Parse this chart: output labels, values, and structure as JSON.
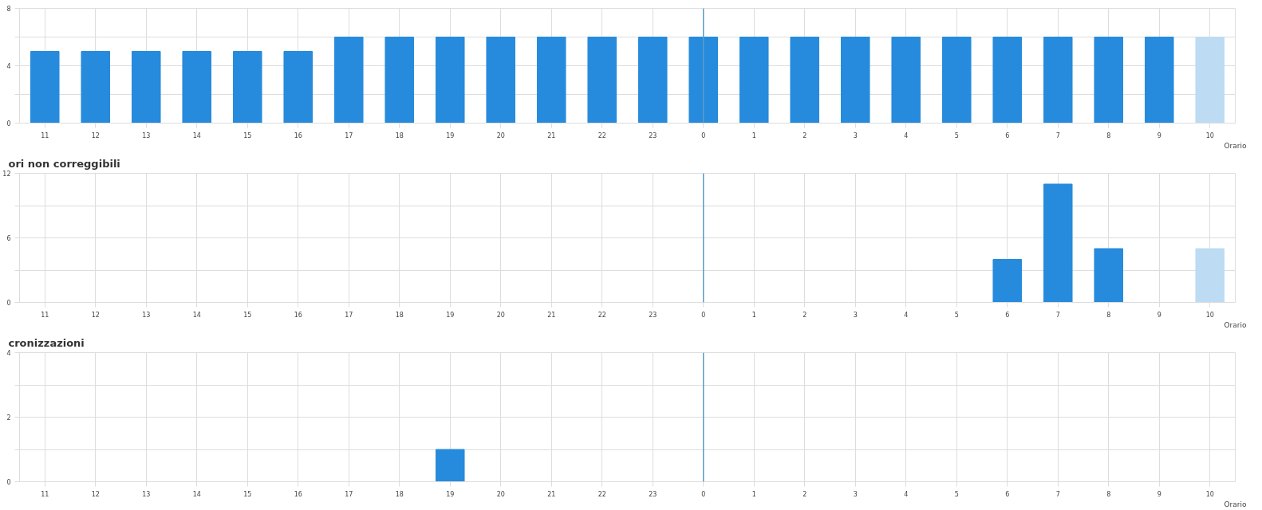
{
  "chart_data": [
    {
      "type": "bar",
      "categories": [
        "11",
        "12",
        "13",
        "14",
        "15",
        "16",
        "17",
        "18",
        "19",
        "20",
        "21",
        "22",
        "23",
        "0",
        "1",
        "2",
        "3",
        "4",
        "5",
        "6",
        "7",
        "8",
        "9",
        "10"
      ],
      "values": [
        5,
        5,
        5,
        5,
        5,
        5,
        6,
        6,
        6,
        6,
        6,
        6,
        6,
        6,
        6,
        6,
        6,
        6,
        6,
        6,
        6,
        6,
        6,
        6
      ],
      "colors": [
        "#268bdc",
        "#268bdc",
        "#268bdc",
        "#268bdc",
        "#268bdc",
        "#268bdc",
        "#268bdc",
        "#268bdc",
        "#268bdc",
        "#268bdc",
        "#268bdc",
        "#268bdc",
        "#268bdc",
        "#268bdc",
        "#268bdc",
        "#268bdc",
        "#268bdc",
        "#268bdc",
        "#268bdc",
        "#268bdc",
        "#268bdc",
        "#268bdc",
        "#268bdc",
        "#bddcf3"
      ],
      "xlabel": "Orario",
      "ylim": [
        0,
        8
      ],
      "yticks": [
        0,
        {
          "value": 2,
          "label": null
        },
        4,
        {
          "value": 6,
          "label": null
        },
        8
      ],
      "grid": true,
      "ref_lines": [
        {
          "axis": "x",
          "value": "0",
          "color": "#5b9bc8"
        }
      ]
    },
    {
      "type": "bar",
      "title": "ori non correggibili",
      "categories": [
        "11",
        "12",
        "13",
        "14",
        "15",
        "16",
        "17",
        "18",
        "19",
        "20",
        "21",
        "22",
        "23",
        "0",
        "1",
        "2",
        "3",
        "4",
        "5",
        "6",
        "7",
        "8",
        "9",
        "10"
      ],
      "values": [
        0,
        0,
        0,
        0,
        0,
        0,
        0,
        0,
        0,
        0,
        0,
        0,
        0,
        0,
        0,
        0,
        0,
        0,
        0,
        4,
        11,
        5,
        0,
        5
      ],
      "colors": [
        "#268bdc",
        "#268bdc",
        "#268bdc",
        "#268bdc",
        "#268bdc",
        "#268bdc",
        "#268bdc",
        "#268bdc",
        "#268bdc",
        "#268bdc",
        "#268bdc",
        "#268bdc",
        "#268bdc",
        "#268bdc",
        "#268bdc",
        "#268bdc",
        "#268bdc",
        "#268bdc",
        "#268bdc",
        "#268bdc",
        "#268bdc",
        "#268bdc",
        "#268bdc",
        "#bddcf3"
      ],
      "xlabel": "Orario",
      "ylim": [
        0,
        12
      ],
      "yticks": [
        0,
        {
          "value": 3,
          "label": null
        },
        6,
        {
          "value": 9,
          "label": null
        },
        12
      ],
      "grid": true,
      "ref_lines": [
        {
          "axis": "x",
          "value": "0",
          "color": "#5b9bc8"
        }
      ]
    },
    {
      "type": "bar",
      "title": "cronizzazioni",
      "categories": [
        "11",
        "12",
        "13",
        "14",
        "15",
        "16",
        "17",
        "18",
        "19",
        "20",
        "21",
        "22",
        "23",
        "0",
        "1",
        "2",
        "3",
        "4",
        "5",
        "6",
        "7",
        "8",
        "9",
        "10"
      ],
      "values": [
        0,
        0,
        0,
        0,
        0,
        0,
        0,
        0,
        1,
        0,
        0,
        0,
        0,
        0,
        0,
        0,
        0,
        0,
        0,
        0,
        0,
        0,
        0,
        0
      ],
      "colors": [
        "#268bdc",
        "#268bdc",
        "#268bdc",
        "#268bdc",
        "#268bdc",
        "#268bdc",
        "#268bdc",
        "#268bdc",
        "#268bdc",
        "#268bdc",
        "#268bdc",
        "#268bdc",
        "#268bdc",
        "#268bdc",
        "#268bdc",
        "#268bdc",
        "#268bdc",
        "#268bdc",
        "#268bdc",
        "#268bdc",
        "#268bdc",
        "#268bdc",
        "#268bdc",
        "#268bdc"
      ],
      "xlabel": "Orario",
      "ylim": [
        0,
        4
      ],
      "yticks": [
        0,
        {
          "value": 1,
          "label": null
        },
        2,
        {
          "value": 3,
          "label": null
        },
        4
      ],
      "grid": true,
      "ref_lines": [
        {
          "axis": "x",
          "value": "0",
          "color": "#5b9bc8"
        }
      ]
    }
  ]
}
